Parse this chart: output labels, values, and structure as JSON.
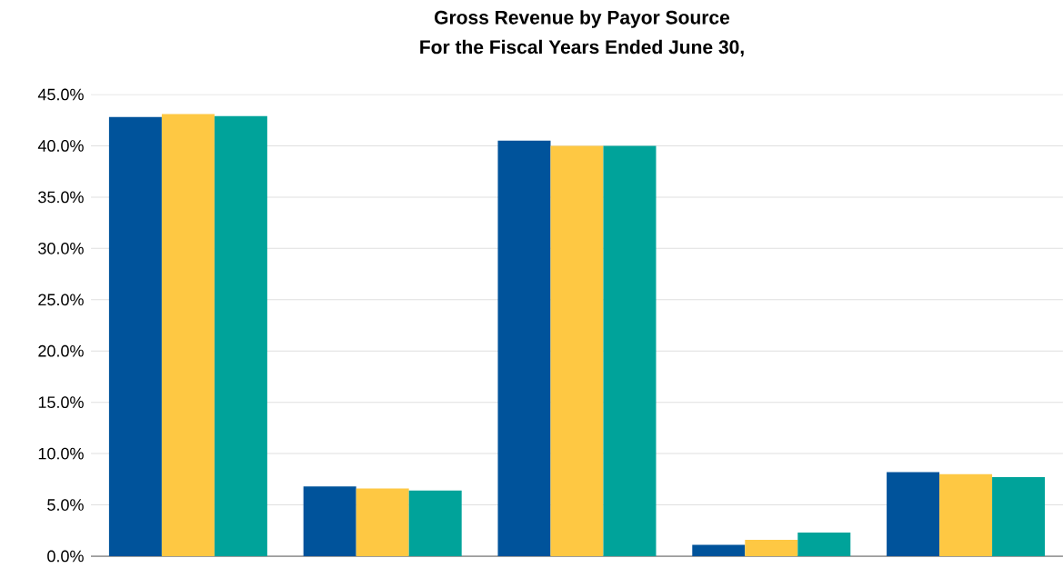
{
  "chart_data": {
    "type": "bar",
    "title": "Gross Revenue by Payor Source",
    "subtitle": "For the Fiscal Years Ended June 30,",
    "categories": [
      null,
      null,
      null,
      null,
      null
    ],
    "series": [
      {
        "color": "#00539b",
        "values": [
          42.8,
          6.8,
          40.5,
          1.1,
          8.2
        ]
      },
      {
        "color": "#fec843",
        "values": [
          43.1,
          6.6,
          40.0,
          1.6,
          8.0
        ]
      },
      {
        "color": "#00a39a",
        "values": [
          42.9,
          6.4,
          40.0,
          2.3,
          7.7
        ]
      }
    ],
    "ylim": [
      0,
      45
    ],
    "yticks": [
      {
        "value": 0,
        "label": "0.0%"
      },
      {
        "value": 5,
        "label": "5.0%"
      },
      {
        "value": 10,
        "label": "10.0%"
      },
      {
        "value": 15,
        "label": "15.0%"
      },
      {
        "value": 20,
        "label": "20.0%"
      },
      {
        "value": 25,
        "label": "25.0%"
      },
      {
        "value": 30,
        "label": "30.0%"
      },
      {
        "value": 35,
        "label": "35.0%"
      },
      {
        "value": 40,
        "label": "40.0%"
      },
      {
        "value": 45,
        "label": "45.0%"
      }
    ],
    "grid": "y"
  }
}
